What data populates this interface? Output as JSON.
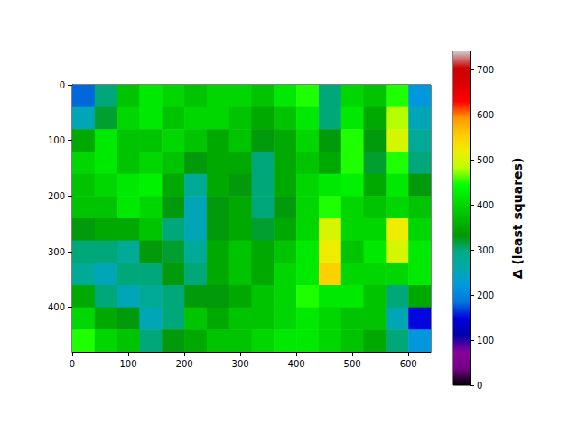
{
  "chart_data": {
    "type": "heatmap",
    "color": "nipy_spectral",
    "x_edges": [
      0,
      40,
      80,
      120,
      160,
      200,
      240,
      280,
      320,
      360,
      400,
      440,
      480,
      520,
      560,
      600,
      640
    ],
    "y_edges": [
      0,
      40,
      80,
      120,
      160,
      200,
      240,
      280,
      320,
      360,
      400,
      440,
      480
    ],
    "values": [
      [
        180,
        300,
        380,
        420,
        400,
        380,
        400,
        400,
        380,
        420,
        450,
        300,
        400,
        380,
        450,
        220
      ],
      [
        250,
        320,
        400,
        420,
        380,
        400,
        400,
        380,
        350,
        380,
        420,
        300,
        420,
        350,
        480,
        250
      ],
      [
        350,
        420,
        380,
        380,
        400,
        380,
        350,
        380,
        330,
        350,
        400,
        330,
        450,
        330,
        500,
        280
      ],
      [
        400,
        420,
        380,
        400,
        380,
        330,
        350,
        350,
        300,
        350,
        380,
        350,
        450,
        320,
        450,
        300
      ],
      [
        380,
        400,
        420,
        430,
        350,
        280,
        350,
        330,
        300,
        350,
        400,
        420,
        430,
        350,
        420,
        330
      ],
      [
        380,
        380,
        420,
        400,
        330,
        250,
        330,
        350,
        300,
        330,
        400,
        450,
        400,
        380,
        400,
        380
      ],
      [
        330,
        350,
        350,
        380,
        300,
        250,
        330,
        350,
        320,
        350,
        400,
        500,
        400,
        400,
        520,
        400
      ],
      [
        300,
        300,
        280,
        330,
        320,
        280,
        350,
        380,
        350,
        380,
        420,
        520,
        380,
        420,
        500,
        420
      ],
      [
        280,
        250,
        300,
        300,
        330,
        300,
        350,
        380,
        350,
        400,
        420,
        550,
        400,
        400,
        400,
        420
      ],
      [
        350,
        300,
        250,
        280,
        300,
        330,
        330,
        350,
        380,
        400,
        450,
        420,
        420,
        380,
        300,
        350
      ],
      [
        400,
        350,
        330,
        250,
        300,
        380,
        350,
        380,
        380,
        400,
        420,
        400,
        380,
        380,
        250,
        150
      ],
      [
        450,
        400,
        380,
        300,
        330,
        350,
        380,
        380,
        400,
        420,
        420,
        400,
        380,
        350,
        300,
        220
      ]
    ],
    "xlim": [
      0,
      640
    ],
    "ylim": [
      480,
      0
    ],
    "xticks": [
      0,
      100,
      200,
      300,
      400,
      500,
      600
    ],
    "yticks": [
      0,
      100,
      200,
      300,
      400
    ],
    "colorbar": {
      "label": "Δ (least squares)",
      "range": [
        0,
        740
      ],
      "ticks": [
        0,
        100,
        200,
        300,
        400,
        500,
        600,
        700
      ]
    }
  }
}
